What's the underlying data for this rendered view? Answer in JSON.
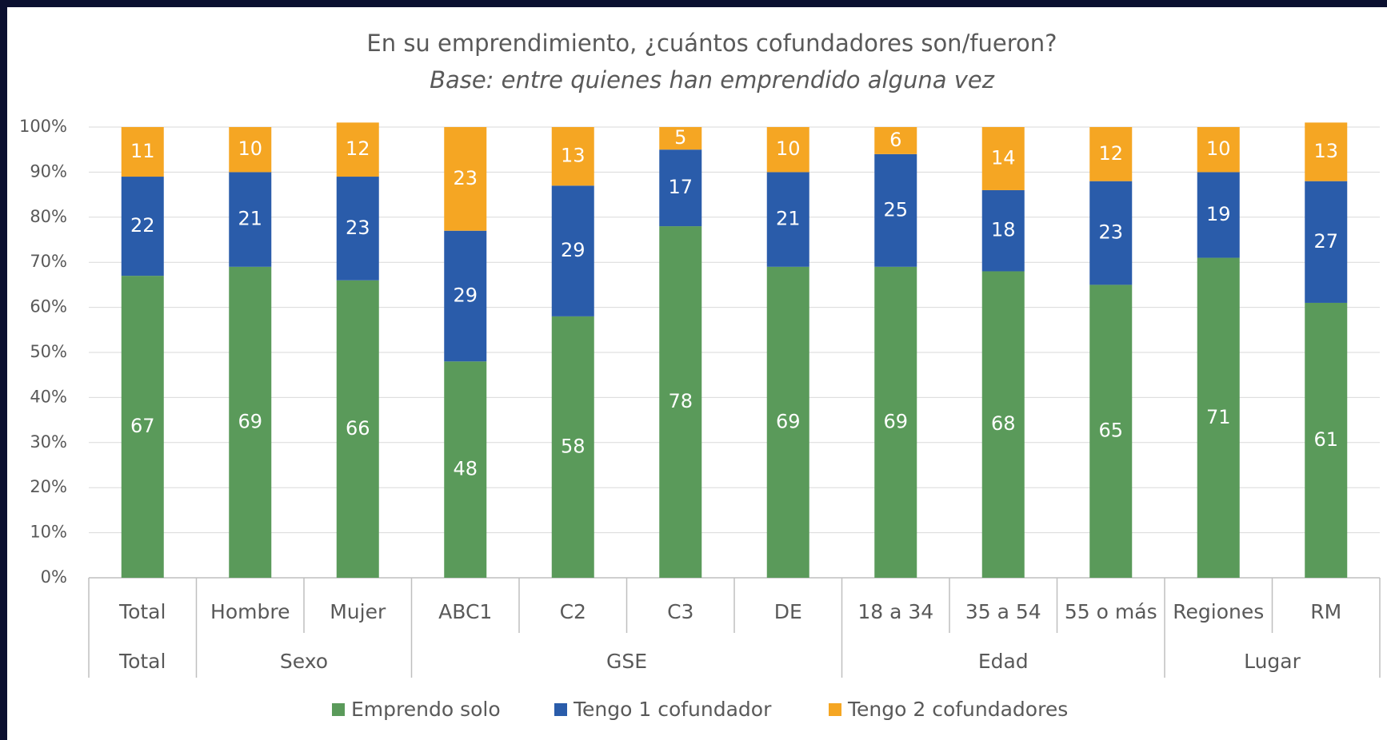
{
  "chart_data": {
    "type": "stacked_bar",
    "title": "En su emprendimiento, ¿cuántos cofundadores son/fueron?",
    "subtitle": "Base: entre quienes han emprendido alguna vez",
    "categories": [
      "Total",
      "Hombre",
      "Mujer",
      "ABC1",
      "C2",
      "C3",
      "DE",
      "18 a 34",
      "35 a 54",
      "55 o más",
      "Regiones",
      "RM"
    ],
    "groups": [
      "Total",
      "Sexo",
      null,
      "GSE",
      null,
      null,
      null,
      "Edad",
      null,
      null,
      "Lugar",
      null
    ],
    "series": [
      {
        "name": "Emprendo solo",
        "color": "#5a9a5a",
        "values": [
          67,
          69,
          66,
          48,
          58,
          78,
          69,
          69,
          68,
          65,
          71,
          61
        ]
      },
      {
        "name": "Tengo 1 cofundador",
        "color": "#2a5caa",
        "values": [
          22,
          21,
          23,
          29,
          29,
          17,
          21,
          25,
          18,
          23,
          19,
          27
        ]
      },
      {
        "name": "Tengo 2 cofundadores",
        "color": "#f5a623",
        "values": [
          11,
          10,
          12,
          23,
          13,
          5,
          10,
          6,
          14,
          12,
          10,
          13
        ]
      }
    ],
    "ylim": [
      0,
      100
    ],
    "yticks": [
      {
        "value": 0,
        "label": "0%"
      },
      {
        "value": 10,
        "label": "10%"
      },
      {
        "value": 20,
        "label": "20%"
      },
      {
        "value": 30,
        "label": "30%"
      },
      {
        "value": 40,
        "label": "40%"
      },
      {
        "value": 50,
        "label": "50%"
      },
      {
        "value": 60,
        "label": "60%"
      },
      {
        "value": 70,
        "label": "70%"
      },
      {
        "value": 80,
        "label": "80%"
      },
      {
        "value": 90,
        "label": "90%"
      },
      {
        "value": 100,
        "label": "100%"
      }
    ],
    "grid": true,
    "legend": "bottom"
  }
}
